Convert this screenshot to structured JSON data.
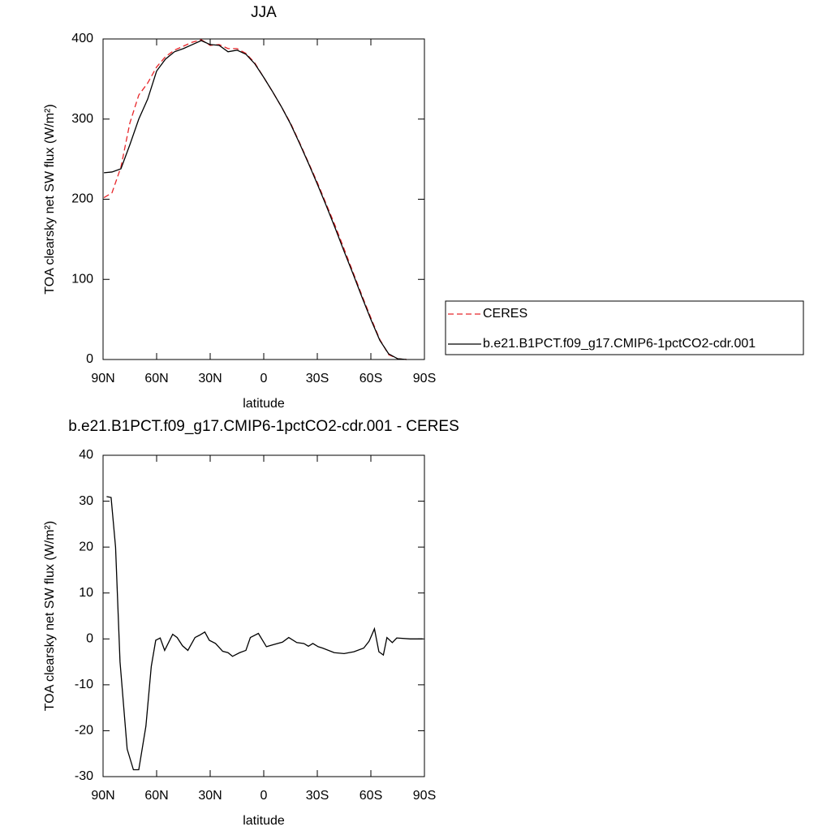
{
  "chart_data": [
    {
      "type": "line",
      "title": "JJA",
      "xlabel": "latitude",
      "ylabel": "TOA clearsky net SW flux (W/m²)",
      "x": [
        89.5,
        85,
        80,
        75,
        70,
        65,
        60,
        55,
        50,
        45,
        40,
        35,
        30,
        25,
        20,
        15,
        10,
        5,
        0,
        -5,
        -10,
        -15,
        -20,
        -25,
        -30,
        -35,
        -40,
        -45,
        -50,
        -55,
        -60,
        -65,
        -70,
        -75,
        -80,
        -85,
        -89.5
      ],
      "series": [
        {
          "name": "CERES",
          "color": "#e8262a",
          "dash": "dashed",
          "values": [
            202,
            208,
            240,
            295,
            330,
            345,
            365,
            378,
            386,
            391,
            396,
            399,
            392,
            393,
            388,
            388,
            382,
            370,
            352,
            334,
            315,
            295,
            271,
            246,
            221,
            194,
            167,
            138,
            109,
            80,
            52,
            25,
            6,
            1,
            0,
            null,
            null
          ]
        },
        {
          "name": "b.e21.B1PCT.f09_g17.CMIP6-1pctCO2-cdr.001",
          "color": "#000000",
          "dash": "solid",
          "values": [
            233,
            234,
            238,
            268,
            300,
            325,
            360,
            375,
            384,
            388,
            393,
            398,
            393,
            392,
            384,
            386,
            381,
            369,
            352,
            334,
            315,
            294,
            270,
            245,
            219,
            192,
            164,
            135,
            107,
            78,
            50,
            24,
            7,
            1,
            0,
            null,
            null
          ]
        }
      ],
      "xlim": [
        90,
        -90
      ],
      "xticks": [
        {
          "value": 90,
          "label": "90N"
        },
        {
          "value": 60,
          "label": "60N"
        },
        {
          "value": 30,
          "label": "30N"
        },
        0,
        {
          "value": -30,
          "label": "30S"
        },
        {
          "value": -60,
          "label": "60S"
        },
        {
          "value": -90,
          "label": "90S"
        }
      ],
      "ylim": [
        0,
        400
      ],
      "yticks": [
        0,
        100,
        200,
        300,
        400
      ],
      "legend": "right"
    },
    {
      "type": "line",
      "title": "b.e21.B1PCT.f09_g17.CMIP6-1pctCO2-cdr.001 - CERES",
      "xlabel": "latitude",
      "ylabel": "TOA clearsky net SW flux (W/m²)",
      "x": [
        88,
        85.5,
        83,
        80.5,
        76.5,
        73,
        70,
        66,
        63,
        60.5,
        58,
        55.5,
        51,
        48.5,
        45.5,
        42.5,
        38.5,
        36,
        33,
        30.5,
        27,
        23,
        20,
        17.5,
        13.5,
        10,
        7.5,
        3,
        -1.5,
        -5,
        -10.5,
        -14,
        -18.5,
        -22.5,
        -25,
        -27.5,
        -30.5,
        -33,
        -39.5,
        -45,
        -50.5,
        -56,
        -59,
        -62,
        -64.5,
        -67,
        -69,
        -72,
        -74.5,
        -82,
        -89
      ],
      "series": [
        {
          "color": "#000000",
          "dash": "solid",
          "values": [
            31,
            30.8,
            20,
            -5,
            -24,
            -28.5,
            -28.5,
            -19,
            -6,
            -0.3,
            0.2,
            -2.5,
            1,
            0.3,
            -1.5,
            -2.5,
            0.3,
            0.8,
            1.5,
            -0.3,
            -1,
            -2.7,
            -3,
            -3.8,
            -3,
            -2.5,
            0.3,
            1.2,
            -1.7,
            -1.3,
            -0.7,
            0.3,
            -0.8,
            -1,
            -1.6,
            -1,
            -1.7,
            -2,
            -3,
            -3.2,
            -2.8,
            -2,
            -0.5,
            2.2,
            -2.8,
            -3.5,
            0.3,
            -0.8,
            0.2,
            0,
            0
          ]
        }
      ],
      "xlim": [
        90,
        -90
      ],
      "xticks": [
        {
          "value": 90,
          "label": "90N"
        },
        {
          "value": 60,
          "label": "60N"
        },
        {
          "value": 30,
          "label": "30N"
        },
        0,
        {
          "value": -30,
          "label": "30S"
        },
        {
          "value": -60,
          "label": "60S"
        },
        {
          "value": -90,
          "label": "90S"
        }
      ],
      "ylim": [
        -30,
        40
      ],
      "yticks": [
        -30,
        -20,
        -10,
        0,
        10,
        20,
        30,
        40
      ]
    }
  ]
}
